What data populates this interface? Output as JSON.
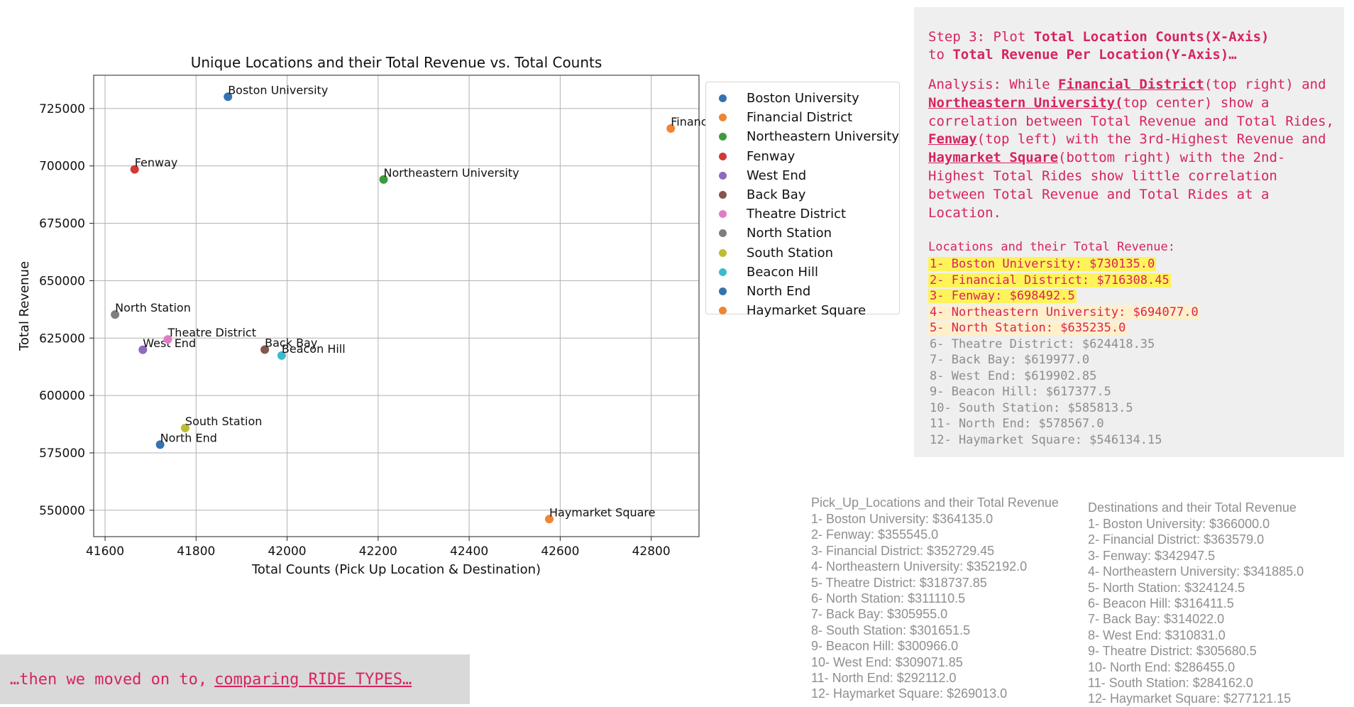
{
  "chart_data": {
    "type": "scatter",
    "title": "Unique Locations and their Total Revenue vs. Total Counts",
    "xlabel": "Total Counts (Pick Up Location & Destination)",
    "ylabel": "Total Revenue",
    "xlim": [
      41575,
      42905
    ],
    "ylim": [
      538500,
      739500
    ],
    "xticks": [
      41600,
      41800,
      42000,
      42200,
      42400,
      42600,
      42800
    ],
    "yticks": [
      550000,
      575000,
      600000,
      625000,
      650000,
      675000,
      700000,
      725000
    ],
    "grid": true,
    "legend_position": "outside-right",
    "series": [
      {
        "name": "Boston University",
        "x": 41870,
        "y": 730135.0,
        "color": "#3572b0"
      },
      {
        "name": "Financial District",
        "x": 42843,
        "y": 716308.45,
        "color": "#ef8533"
      },
      {
        "name": "Northeastern University",
        "x": 42212,
        "y": 694077.0,
        "color": "#3e9a3e"
      },
      {
        "name": "Fenway",
        "x": 41665,
        "y": 698492.5,
        "color": "#cf3b35"
      },
      {
        "name": "West End",
        "x": 41683,
        "y": 619902.85,
        "color": "#8f68bf"
      },
      {
        "name": "Back Bay",
        "x": 41951,
        "y": 619977.0,
        "color": "#85574b"
      },
      {
        "name": "Theatre District",
        "x": 41738,
        "y": 624418.35,
        "color": "#e17cc3"
      },
      {
        "name": "North Station",
        "x": 41622,
        "y": 635235.0,
        "color": "#7e7e7e"
      },
      {
        "name": "South Station",
        "x": 41776,
        "y": 585813.5,
        "color": "#bcbd32"
      },
      {
        "name": "Beacon Hill",
        "x": 41988,
        "y": 617377.5,
        "color": "#39bccc"
      },
      {
        "name": "North End",
        "x": 41721,
        "y": 578567.0,
        "color": "#3572b0"
      },
      {
        "name": "Haymarket Square",
        "x": 42576,
        "y": 546134.15,
        "color": "#ef8533"
      }
    ]
  },
  "analysis": {
    "step_line1_pre": "Step 3: Plot ",
    "step_line1_bold": "Total Location Counts(X-Axis)",
    "step_line2_pre": "to ",
    "step_line2_bold": "Total Revenue Per Location(Y-Axis)…",
    "a1": "Analysis:  While ",
    "a2": "Financial District",
    "a3": "(top right) and ",
    "a4": "Northeastern University(",
    "a5": "top center) show a correlation between Total Revenue and Total Rides, ",
    "a6": "Fenway",
    "a7": "(top left) with the 3rd-Highest Revenue and ",
    "a8": "Haymarket Square",
    "a9": "(bottom right) with the 2nd-Highest Total Rides show little correlation between Total Revenue and Total Rides at a Location.",
    "revenue_title": "Locations and their Total Revenue:",
    "revenue_list": [
      "1- Boston University: $730135.0",
      "2- Financial District: $716308.45",
      "3- Fenway: $698492.5",
      "4- Northeastern University: $694077.0",
      "5- North Station: $635235.0",
      "6- Theatre District: $624418.35",
      "7- Back Bay: $619977.0",
      "8- West End: $619902.85",
      "9- Beacon Hill: $617377.5",
      "10- South Station: $585813.5",
      "11- North End: $578567.0",
      "12- Haymarket Square: $546134.15"
    ]
  },
  "pickup": {
    "title": "Pick_Up_Locations and their Total Revenue",
    "items": [
      "1- Boston University: $364135.0",
      "2- Fenway: $355545.0",
      "3- Financial District: $352729.45",
      "4- Northeastern University: $352192.0",
      "5- Theatre District: $318737.85",
      "6- North Station: $311110.5",
      "7- Back Bay: $305955.0",
      "8- South Station: $301651.5",
      "9- Beacon Hill: $300966.0",
      "10- West End: $309071.85",
      "11- North End: $292112.0",
      "12- Haymarket Square: $269013.0"
    ]
  },
  "destinations": {
    "title": "Destinations and their Total Revenue",
    "items": [
      "1- Boston University: $366000.0",
      "2- Financial District: $363579.0",
      "3- Fenway: $342947.5",
      "4- Northeastern University: $341885.0",
      "5- North Station: $324124.5",
      "6- Beacon Hill: $316411.5",
      "7- Back Bay: $314022.0",
      "8- West End: $310831.0",
      "9- Theatre District: $305680.5",
      "10- North End: $286455.0",
      "11- South Station: $284162.0",
      "12- Haymarket Square: $277121.15"
    ]
  },
  "banner": {
    "text": "…then we moved on to,",
    "link": "comparing RIDE TYPES…"
  }
}
